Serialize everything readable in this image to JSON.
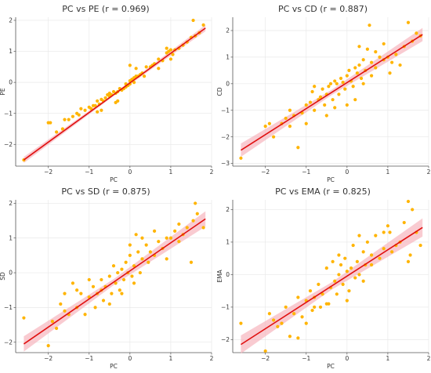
{
  "colors": {
    "points": "#ffb400",
    "line": "#e01010",
    "band": "#f7b5bd",
    "grid": "#e8e8e8",
    "axis": "#555555"
  },
  "chart_data": [
    {
      "type": "scatter",
      "title": "PC vs PE (r = 0.969)",
      "xlabel": "PC",
      "ylabel": "PE",
      "xlim": [
        -2.8,
        2.0
      ],
      "ylim": [
        -2.7,
        2.1
      ],
      "xticks": [
        -2,
        -1,
        0,
        1,
        2
      ],
      "xtick_labels": [
        "−2",
        "−1",
        "0",
        "1",
        "2"
      ],
      "yticks": [
        -2,
        -1,
        0,
        1,
        2
      ],
      "ytick_labels": [
        "−2",
        "−1",
        "0",
        "1",
        "2"
      ],
      "grid": true,
      "fit": {
        "x": [
          -2.6,
          1.85
        ],
        "y": [
          -2.5,
          1.75
        ],
        "band": 0.1
      },
      "points": [
        [
          -2.6,
          -2.5
        ],
        [
          -2.0,
          -1.3
        ],
        [
          -1.95,
          -1.3
        ],
        [
          -1.8,
          -1.6
        ],
        [
          -1.6,
          -1.2
        ],
        [
          -1.5,
          -1.2
        ],
        [
          -1.4,
          -1.1
        ],
        [
          -1.3,
          -1.0
        ],
        [
          -1.25,
          -1.05
        ],
        [
          -1.1,
          -0.9
        ],
        [
          -1.0,
          -0.8
        ],
        [
          -0.95,
          -0.85
        ],
        [
          -0.9,
          -0.75
        ],
        [
          -0.85,
          -0.75
        ],
        [
          -0.8,
          -0.6
        ],
        [
          -0.75,
          -0.7
        ],
        [
          -0.7,
          -0.55
        ],
        [
          -0.65,
          -0.6
        ],
        [
          -0.6,
          -0.5
        ],
        [
          -0.55,
          -0.4
        ],
        [
          -0.5,
          -0.45
        ],
        [
          -0.5,
          -0.35
        ],
        [
          -0.45,
          -0.4
        ],
        [
          -0.4,
          -0.3
        ],
        [
          -0.35,
          -0.35
        ],
        [
          -0.3,
          -0.3
        ],
        [
          -0.3,
          -0.6
        ],
        [
          -0.25,
          -0.2
        ],
        [
          -0.2,
          -0.25
        ],
        [
          -0.15,
          -0.2
        ],
        [
          -0.1,
          -0.15
        ],
        [
          -0.1,
          -0.05
        ],
        [
          -0.05,
          -0.1
        ],
        [
          0.0,
          0.05
        ],
        [
          0.0,
          -0.05
        ],
        [
          0.05,
          0.1
        ],
        [
          0.1,
          0.15
        ],
        [
          0.1,
          0.0
        ],
        [
          0.15,
          0.2
        ],
        [
          0.2,
          0.2
        ],
        [
          0.25,
          0.25
        ],
        [
          0.3,
          0.3
        ],
        [
          0.35,
          0.2
        ],
        [
          0.4,
          0.5
        ],
        [
          0.5,
          0.5
        ],
        [
          0.55,
          0.55
        ],
        [
          0.6,
          0.6
        ],
        [
          0.7,
          0.75
        ],
        [
          0.8,
          0.7
        ],
        [
          0.9,
          0.95
        ],
        [
          0.95,
          1.0
        ],
        [
          1.0,
          1.05
        ],
        [
          1.05,
          0.9
        ],
        [
          1.1,
          1.05
        ],
        [
          1.2,
          1.1
        ],
        [
          1.3,
          1.2
        ],
        [
          1.4,
          1.3
        ],
        [
          1.5,
          1.45
        ],
        [
          1.55,
          2.0
        ],
        [
          1.6,
          1.5
        ],
        [
          1.7,
          1.6
        ],
        [
          1.8,
          1.85
        ],
        [
          -0.7,
          -0.9
        ],
        [
          0.15,
          0.45
        ],
        [
          -1.2,
          -0.85
        ],
        [
          0.7,
          0.45
        ],
        [
          1.0,
          0.75
        ],
        [
          -0.35,
          -0.65
        ],
        [
          0.0,
          0.55
        ],
        [
          0.9,
          1.1
        ],
        [
          -1.65,
          -1.5
        ],
        [
          -0.8,
          -0.95
        ]
      ]
    },
    {
      "type": "scatter",
      "title": "PC vs CD (r = 0.887)",
      "xlabel": "PC",
      "ylabel": "CD",
      "xlim": [
        -2.8,
        2.0
      ],
      "ylim": [
        -3.1,
        2.5
      ],
      "xticks": [
        -2,
        -1,
        0,
        1,
        2
      ],
      "xtick_labels": [
        "−2",
        "−1",
        "0",
        "1",
        "2"
      ],
      "yticks": [
        -3,
        -2,
        -1,
        0,
        1,
        2
      ],
      "ytick_labels": [
        "−3",
        "−2",
        "−1",
        "0",
        "1",
        "2"
      ],
      "grid": true,
      "fit": {
        "x": [
          -2.6,
          1.85
        ],
        "y": [
          -2.5,
          1.85
        ],
        "band": 0.25
      },
      "points": [
        [
          -2.6,
          -2.8
        ],
        [
          -2.0,
          -1.6
        ],
        [
          -1.9,
          -1.5
        ],
        [
          -1.8,
          -2.0
        ],
        [
          -1.6,
          -1.5
        ],
        [
          -1.5,
          -1.3
        ],
        [
          -1.4,
          -1.0
        ],
        [
          -1.3,
          -1.2
        ],
        [
          -1.2,
          -2.4
        ],
        [
          -1.1,
          -1.1
        ],
        [
          -1.0,
          -0.8
        ],
        [
          -0.9,
          -0.7
        ],
        [
          -0.85,
          -0.3
        ],
        [
          -0.8,
          -1.0
        ],
        [
          -0.7,
          -0.6
        ],
        [
          -0.65,
          -0.5
        ],
        [
          -0.6,
          -0.2
        ],
        [
          -0.55,
          -0.8
        ],
        [
          -0.5,
          -0.4
        ],
        [
          -0.45,
          -0.1
        ],
        [
          -0.4,
          0.0
        ],
        [
          -0.35,
          -0.6
        ],
        [
          -0.3,
          0.1
        ],
        [
          -0.25,
          0.0
        ],
        [
          -0.2,
          -0.4
        ],
        [
          -0.15,
          0.2
        ],
        [
          -0.1,
          0.05
        ],
        [
          -0.05,
          -0.2
        ],
        [
          0.0,
          0.3
        ],
        [
          0.05,
          0.5
        ],
        [
          0.1,
          0.1
        ],
        [
          0.15,
          -0.1
        ],
        [
          0.2,
          0.6
        ],
        [
          0.25,
          0.4
        ],
        [
          0.3,
          0.7
        ],
        [
          0.35,
          0.2
        ],
        [
          0.4,
          0.9
        ],
        [
          0.45,
          0.5
        ],
        [
          0.5,
          1.3
        ],
        [
          0.55,
          2.2
        ],
        [
          0.6,
          0.8
        ],
        [
          0.7,
          0.6
        ],
        [
          0.8,
          1.0
        ],
        [
          0.9,
          0.9
        ],
        [
          1.0,
          1.0
        ],
        [
          1.05,
          0.4
        ],
        [
          1.1,
          0.8
        ],
        [
          1.2,
          1.1
        ],
        [
          1.4,
          1.4
        ],
        [
          1.5,
          2.3
        ],
        [
          1.6,
          1.6
        ],
        [
          1.7,
          1.9
        ],
        [
          1.8,
          1.8
        ],
        [
          -1.0,
          -1.5
        ],
        [
          -0.5,
          -1.2
        ],
        [
          0.2,
          -0.6
        ],
        [
          0.3,
          1.4
        ],
        [
          0.6,
          0.3
        ],
        [
          -0.8,
          -0.1
        ],
        [
          0.9,
          1.5
        ],
        [
          -1.4,
          -1.6
        ],
        [
          0.0,
          -0.8
        ],
        [
          0.4,
          0.0
        ],
        [
          -0.3,
          -0.9
        ],
        [
          0.7,
          1.2
        ],
        [
          1.3,
          0.7
        ]
      ]
    },
    {
      "type": "scatter",
      "title": "PC vs SD (r = 0.875)",
      "xlabel": "PC",
      "ylabel": "SD",
      "xlim": [
        -2.8,
        2.0
      ],
      "ylim": [
        -2.3,
        2.1
      ],
      "xticks": [
        -2,
        -1,
        0,
        1,
        2
      ],
      "xtick_labels": [
        "−2",
        "−1",
        "0",
        "1",
        "2"
      ],
      "yticks": [
        -2,
        -1,
        0,
        1,
        2
      ],
      "ytick_labels": [
        "−2",
        "−1",
        "0",
        "1",
        "2"
      ],
      "grid": true,
      "fit": {
        "x": [
          -2.6,
          1.85
        ],
        "y": [
          -2.05,
          1.55
        ],
        "band": 0.22
      },
      "points": [
        [
          -2.6,
          -1.3
        ],
        [
          -2.0,
          -2.1
        ],
        [
          -1.9,
          -1.4
        ],
        [
          -1.8,
          -1.6
        ],
        [
          -1.7,
          -0.9
        ],
        [
          -1.6,
          -1.1
        ],
        [
          -1.5,
          -1.2
        ],
        [
          -1.4,
          -0.3
        ],
        [
          -1.3,
          -1.0
        ],
        [
          -1.2,
          -0.6
        ],
        [
          -1.1,
          -1.2
        ],
        [
          -1.0,
          -0.7
        ],
        [
          -0.9,
          -0.4
        ],
        [
          -0.85,
          -1.0
        ],
        [
          -0.8,
          -0.6
        ],
        [
          -0.7,
          -0.2
        ],
        [
          -0.65,
          -0.8
        ],
        [
          -0.6,
          -0.4
        ],
        [
          -0.5,
          -0.1
        ],
        [
          -0.45,
          -0.6
        ],
        [
          -0.4,
          0.2
        ],
        [
          -0.35,
          -0.3
        ],
        [
          -0.3,
          0.0
        ],
        [
          -0.25,
          -0.5
        ],
        [
          -0.2,
          0.1
        ],
        [
          -0.15,
          -0.2
        ],
        [
          -0.1,
          0.3
        ],
        [
          -0.05,
          0.0
        ],
        [
          0.0,
          0.5
        ],
        [
          0.05,
          -0.1
        ],
        [
          0.1,
          0.2
        ],
        [
          0.15,
          1.1
        ],
        [
          0.2,
          0.6
        ],
        [
          0.25,
          0.0
        ],
        [
          0.3,
          0.4
        ],
        [
          0.4,
          0.8
        ],
        [
          0.45,
          0.3
        ],
        [
          0.5,
          0.6
        ],
        [
          0.6,
          0.5
        ],
        [
          0.7,
          0.9
        ],
        [
          0.8,
          0.7
        ],
        [
          0.9,
          0.4
        ],
        [
          1.0,
          1.0
        ],
        [
          1.1,
          1.2
        ],
        [
          1.2,
          0.9
        ],
        [
          1.3,
          1.1
        ],
        [
          1.4,
          1.3
        ],
        [
          1.5,
          0.3
        ],
        [
          1.55,
          1.5
        ],
        [
          1.6,
          2.0
        ],
        [
          1.65,
          1.7
        ],
        [
          1.8,
          1.3
        ],
        [
          -1.0,
          -0.2
        ],
        [
          -0.5,
          -0.9
        ],
        [
          0.3,
          1.0
        ],
        [
          0.6,
          1.2
        ],
        [
          -0.2,
          -0.6
        ],
        [
          0.9,
          1.0
        ],
        [
          -1.3,
          -0.5
        ],
        [
          0.0,
          0.8
        ],
        [
          -0.7,
          -0.5
        ],
        [
          1.2,
          1.4
        ],
        [
          0.1,
          -0.3
        ],
        [
          -1.6,
          -0.6
        ]
      ]
    },
    {
      "type": "scatter",
      "title": "PC vs EMA (r = 0.825)",
      "xlabel": "PC",
      "ylabel": "EMA",
      "xlim": [
        -2.8,
        2.0
      ],
      "ylim": [
        -2.4,
        2.3
      ],
      "xticks": [
        -2,
        -1,
        0,
        1,
        2
      ],
      "xtick_labels": [
        "−2",
        "−1",
        "0",
        "1",
        "2"
      ],
      "yticks": [
        -2,
        -1,
        0,
        1,
        2
      ],
      "ytick_labels": [
        "−2",
        "−1",
        "0",
        "1",
        "2"
      ],
      "grid": true,
      "fit": {
        "x": [
          -2.6,
          1.85
        ],
        "y": [
          -2.15,
          1.45
        ],
        "band": 0.28
      },
      "points": [
        [
          -2.6,
          -1.5
        ],
        [
          -2.0,
          -2.35
        ],
        [
          -1.9,
          -1.2
        ],
        [
          -1.8,
          -1.4
        ],
        [
          -1.7,
          -1.6
        ],
        [
          -1.6,
          -1.5
        ],
        [
          -1.5,
          -1.0
        ],
        [
          -1.4,
          -1.9
        ],
        [
          -1.3,
          -1.2
        ],
        [
          -1.2,
          -1.95
        ],
        [
          -1.1,
          -1.3
        ],
        [
          -1.0,
          -0.8
        ],
        [
          -0.9,
          -0.5
        ],
        [
          -0.85,
          -1.1
        ],
        [
          -0.8,
          -0.7
        ],
        [
          -0.7,
          -0.3
        ],
        [
          -0.65,
          -1.0
        ],
        [
          -0.6,
          -0.6
        ],
        [
          -0.5,
          0.2
        ],
        [
          -0.45,
          -0.9
        ],
        [
          -0.4,
          -0.4
        ],
        [
          -0.35,
          0.4
        ],
        [
          -0.3,
          -0.2
        ],
        [
          -0.25,
          -0.6
        ],
        [
          -0.2,
          0.0
        ],
        [
          -0.15,
          0.3
        ],
        [
          -0.1,
          -0.3
        ],
        [
          -0.05,
          0.5
        ],
        [
          0.0,
          0.1
        ],
        [
          0.05,
          -0.5
        ],
        [
          0.1,
          0.2
        ],
        [
          0.15,
          0.9
        ],
        [
          0.2,
          -0.1
        ],
        [
          0.25,
          0.4
        ],
        [
          0.3,
          0.0
        ],
        [
          0.4,
          0.7
        ],
        [
          0.45,
          0.3
        ],
        [
          0.5,
          1.0
        ],
        [
          0.6,
          0.6
        ],
        [
          0.7,
          1.2
        ],
        [
          0.8,
          0.5
        ],
        [
          0.9,
          0.8
        ],
        [
          1.0,
          1.5
        ],
        [
          1.05,
          1.3
        ],
        [
          1.1,
          0.7
        ],
        [
          1.2,
          0.9
        ],
        [
          1.3,
          1.0
        ],
        [
          1.4,
          1.6
        ],
        [
          1.5,
          2.25
        ],
        [
          1.55,
          0.6
        ],
        [
          1.6,
          2.0
        ],
        [
          1.7,
          1.3
        ],
        [
          1.8,
          0.9
        ],
        [
          -1.0,
          -1.5
        ],
        [
          -0.5,
          -0.9
        ],
        [
          0.3,
          1.2
        ],
        [
          0.6,
          0.3
        ],
        [
          -0.8,
          -1.0
        ],
        [
          0.9,
          1.3
        ],
        [
          -0.2,
          0.6
        ],
        [
          0.0,
          -0.8
        ],
        [
          1.5,
          0.4
        ],
        [
          -1.2,
          -0.7
        ],
        [
          0.4,
          -0.2
        ]
      ]
    }
  ]
}
